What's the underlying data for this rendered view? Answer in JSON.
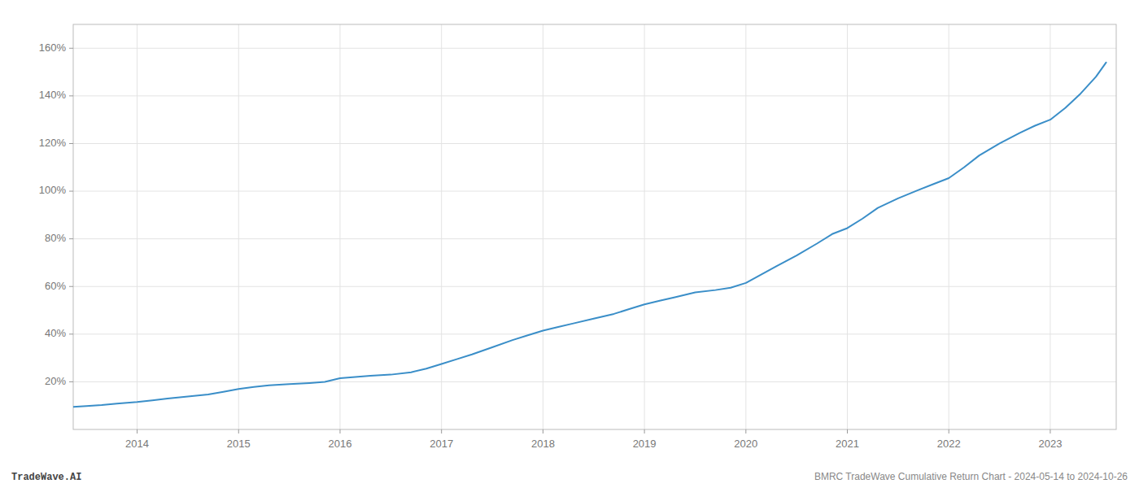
{
  "chart_data": {
    "type": "line",
    "x": [
      2013.37,
      2013.5,
      2013.65,
      2013.8,
      2014.0,
      2014.15,
      2014.3,
      2014.5,
      2014.7,
      2014.85,
      2015.0,
      2015.15,
      2015.3,
      2015.5,
      2015.7,
      2015.85,
      2016.0,
      2016.15,
      2016.3,
      2016.5,
      2016.7,
      2016.85,
      2017.0,
      2017.15,
      2017.3,
      2017.5,
      2017.7,
      2017.85,
      2018.0,
      2018.15,
      2018.3,
      2018.5,
      2018.7,
      2018.85,
      2019.0,
      2019.15,
      2019.3,
      2019.5,
      2019.7,
      2019.85,
      2020.0,
      2020.15,
      2020.3,
      2020.5,
      2020.7,
      2020.85,
      2021.0,
      2021.15,
      2021.3,
      2021.5,
      2021.7,
      2021.85,
      2022.0,
      2022.15,
      2022.3,
      2022.5,
      2022.7,
      2022.85,
      2023.0,
      2023.15,
      2023.3,
      2023.45,
      2023.55
    ],
    "values": [
      9.5,
      9.8,
      10.2,
      10.8,
      11.5,
      12.2,
      13.0,
      13.8,
      14.7,
      15.8,
      17.0,
      17.8,
      18.5,
      19.0,
      19.5,
      20.0,
      21.5,
      22.0,
      22.5,
      23.0,
      24.0,
      25.5,
      27.5,
      29.5,
      31.5,
      34.5,
      37.5,
      39.5,
      41.5,
      43.0,
      44.5,
      46.5,
      48.5,
      50.5,
      52.5,
      54.0,
      55.5,
      57.5,
      58.5,
      59.5,
      61.5,
      65.0,
      68.5,
      73.0,
      78.0,
      82.0,
      84.5,
      88.5,
      93.0,
      97.0,
      100.5,
      103.0,
      105.5,
      110.0,
      115.0,
      120.0,
      124.5,
      127.5,
      130.0,
      135.0,
      141.0,
      148.0,
      154.0
    ],
    "color": "#3a8ec8",
    "xlim": [
      2013.37,
      2023.65
    ],
    "ylim": [
      0,
      170
    ],
    "xticks": [
      2014,
      2015,
      2016,
      2017,
      2018,
      2019,
      2020,
      2021,
      2022,
      2023
    ],
    "yticks": [
      {
        "value": 20,
        "label": "20%"
      },
      {
        "value": 40,
        "label": "40%"
      },
      {
        "value": 60,
        "label": "60%"
      },
      {
        "value": 80,
        "label": "80%"
      },
      {
        "value": 100,
        "label": "100%"
      },
      {
        "value": 120,
        "label": "120%"
      },
      {
        "value": 140,
        "label": "140%"
      },
      {
        "value": 160,
        "label": "160%"
      }
    ],
    "grid": true,
    "annotations": [
      "TradeWave.AI",
      "BMRC TradeWave Cumulative Return Chart - 2024-05-14 to 2024-10-26"
    ]
  }
}
